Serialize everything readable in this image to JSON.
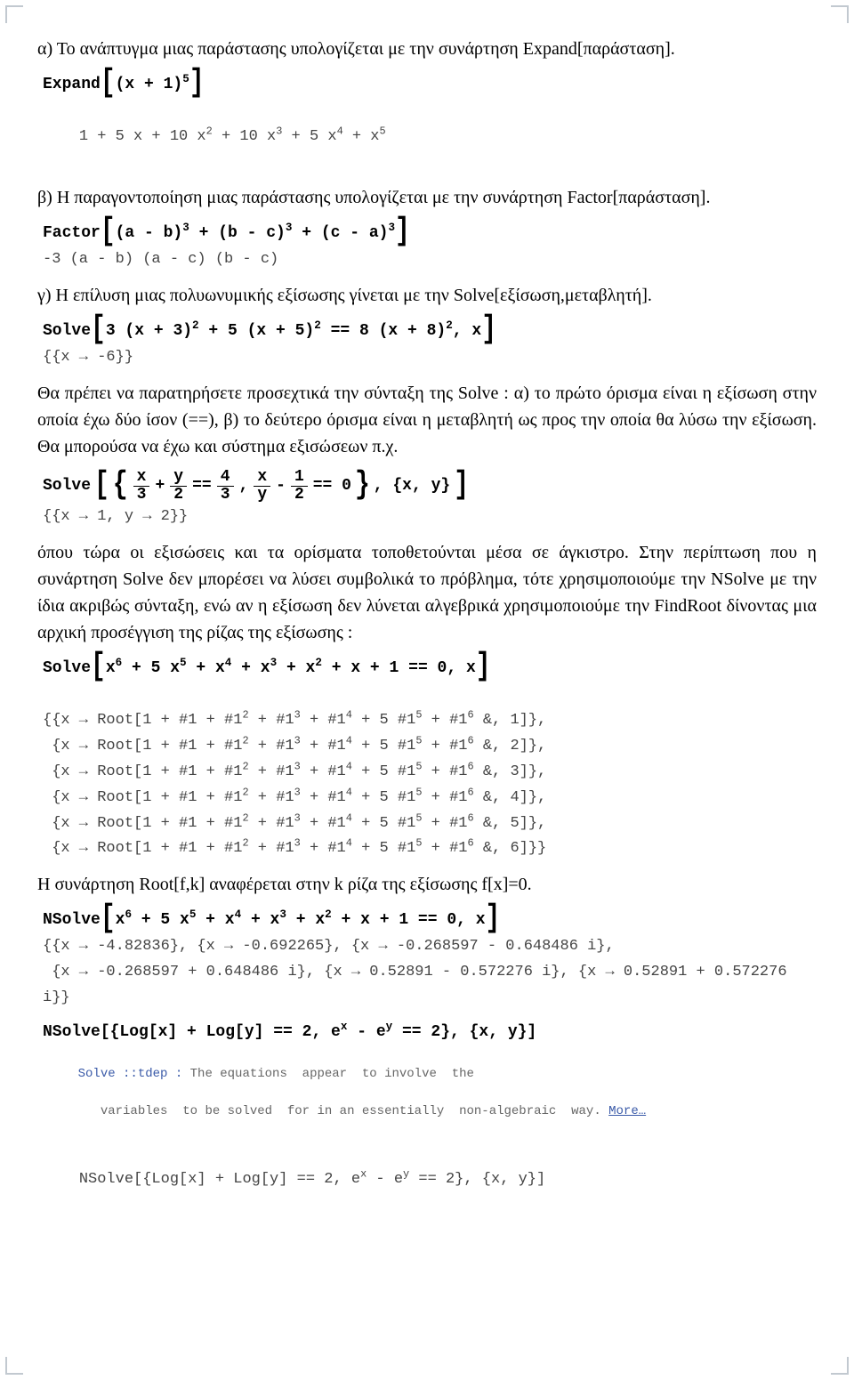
{
  "colors": {
    "text": "#000000",
    "output": "#444444",
    "message": "#666666",
    "link": "#3a5aa8",
    "corner": "#9aa6b2",
    "background": "#ffffff"
  },
  "typography": {
    "body_font": "Georgia, 'Times New Roman', serif",
    "code_font": "'Courier New', monospace",
    "body_size_pt": 15,
    "code_size_pt": 13
  },
  "p1": "α) Το ανάπτυγμα μιας παράστασης υπολογίζεται με την συνάρτηση Expand[παράσταση].",
  "in1_pre": "Expand",
  "in1_base": "(x + 1)",
  "in1_exp": "5",
  "out1_pre": "1 + 5 x + 10 x",
  "out1_e2": "2",
  "out1_m3": " + 10 x",
  "out1_e3": "3",
  "out1_m4": " + 5 x",
  "out1_e4": "4",
  "out1_m5": " + x",
  "out1_e5": "5",
  "p2": "β) Η παραγοντοποίηση μιας παράστασης υπολογίζεται με την συνάρτηση Factor[παράσταση].",
  "in2_pre": "Factor",
  "in2_t1": "(a - b)",
  "in2_t2": "(b - c)",
  "in2_t3": "(c - a)",
  "in2_plus": " + ",
  "in2_exp": "3",
  "out2": "-3 (a - b) (a - c) (b - c)",
  "p3": "γ) Η επίλυση μιας πολυωνυμικής εξίσωσης γίνεται με την Solve[εξίσωση,μεταβλητή].",
  "in3_pre": "Solve",
  "in3_a": "3 (x + 3)",
  "in3_b": " + 5 (x + 5)",
  "in3_c": " == 8 (x + 8)",
  "in3_exp": "2",
  "in3_tail": ", x",
  "out3": "{{x → -6}}",
  "p4": "Θα πρέπει να παρατηρήσετε προσεχτικά την σύνταξη της Solve : α) το πρώτο όρισμα είναι η εξίσωση στην οποία έχω δύο ίσον (==), β) το δεύτερο όρισμα είναι η μεταβλητή ως προς την οποία θα λύσω την εξίσωση. Θα μπορούσα να έχω και σύστημα εξισώσεων π.χ.",
  "in4_pre": "Solve",
  "in4_f1n": "x",
  "in4_f1d": "3",
  "in4_plus": " + ",
  "in4_f2n": "y",
  "in4_f2d": "2",
  "in4_eq1": " == ",
  "in4_f3n": "4",
  "in4_f3d": "3",
  "in4_sep": ", ",
  "in4_f4n": "x",
  "in4_f4d": "y",
  "in4_minus": " - ",
  "in4_f5n": "1",
  "in4_f5d": "2",
  "in4_eq2": " == 0",
  "in4_tail": ", {x, y}",
  "out4": "{{x → 1, y → 2}}",
  "p5": "όπου τώρα οι εξισώσεις και τα ορίσματα τοποθετούνται μέσα σε άγκιστρο. Στην περίπτωση που η συνάρτηση Solve δεν μπορέσει να λύσει συμβολικά το πρόβλημα, τότε χρησιμοποιούμε την NSolve με την ίδια ακριβώς σύνταξη, ενώ αν η εξίσωση δεν λύνεται αλγεβρικά χρησιμοποιούμε την FindRoot δίνοντας μια αρχική προσέγγιση της ρίζας της εξίσωσης :",
  "in5_pre": "Solve",
  "in5_head": "x",
  "in5_e6": "6",
  "in5_p5": " + 5 x",
  "in5_e5": "5",
  "in5_p4": " + x",
  "in5_e4": "4",
  "in5_p3": " + x",
  "in5_e3": "3",
  "in5_p2": " + x",
  "in5_e2": "2",
  "in5_tail": " + x + 1 == 0, x",
  "root_prefix": "{x → Root[1 + #1 + #1",
  "root_e2": "2",
  "root_m3": " + #1",
  "root_e3": "3",
  "root_m4": " + #1",
  "root_e4": "4",
  "root_m5": " + 5 #1",
  "root_e5": "5",
  "root_m6": " + #1",
  "root_e6": "6",
  "root_amp": " &, ",
  "root_k1": "1",
  "root_k2": "2",
  "root_k3": "3",
  "root_k4": "4",
  "root_k5": "5",
  "root_k6": "6",
  "root_close_mid": "]},",
  "root_close_end": "]}}",
  "root_open": "{",
  "p6": "Η συνάρτηση Root[f,k] αναφέρεται στην k ρίζα της εξίσωσης f[x]=0.",
  "in6_pre": "NSolve",
  "out6": "{{x → -4.82836}, {x → -0.692265}, {x → -0.268597 - 0.648486 i},\n {x → -0.268597 + 0.648486 i}, {x → 0.52891 - 0.572276 i}, {x → 0.52891 + 0.572276 i}}",
  "in7_pre": "NSolve",
  "in7_a": "[{Log[x] + Log[y] == 2, e",
  "in7_ex": "x",
  "in7_b": " - e",
  "in7_ey": "y",
  "in7_c": " == 2}, {x, y}]",
  "msg_head": "Solve ::tdep : ",
  "msg_body1": "The equations  appear  to involve  the",
  "msg_body2": "variables  to be solved  for in an essentially  non-algebraic  way. ",
  "msg_more": "More…",
  "out7a": "NSolve[{Log[x] + Log[y] == 2, e",
  "out7b": " - e",
  "out7c": " == 2}, {x, y}]",
  "out7ex": "x",
  "out7ey": "y"
}
